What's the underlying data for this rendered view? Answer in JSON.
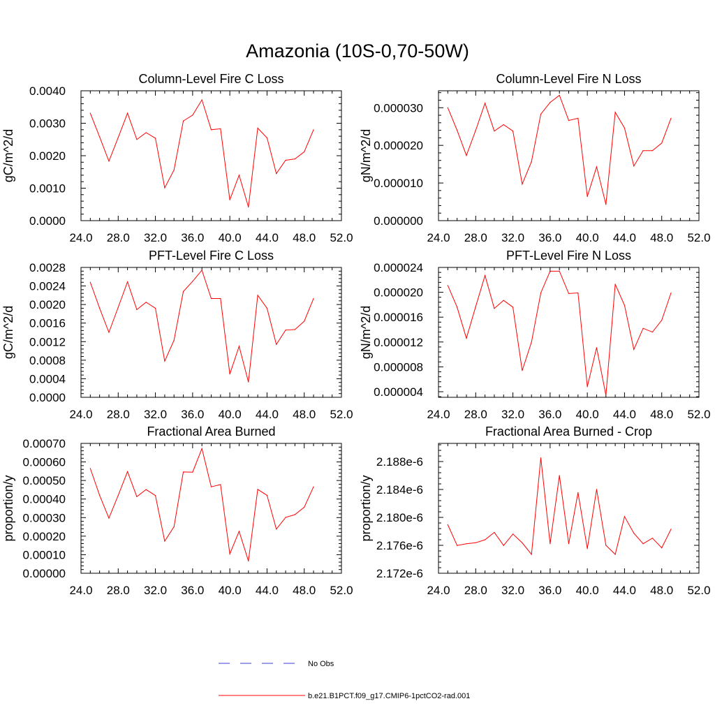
{
  "figure": {
    "title": "Amazonia (10S-0,70-50W)"
  },
  "legend": {
    "entries": [
      {
        "label": "No Obs",
        "color": "#3b3bd9",
        "style": "dashed"
      },
      {
        "label": "b.e21.B1PCT.f09_g17.CMIP6-1pctCO2-rad.001",
        "color": "#ff0000",
        "style": "solid"
      }
    ]
  },
  "chart_data": [
    {
      "type": "line",
      "title": "Column-Level Fire C Loss",
      "ylabel": "gC/m^2/d",
      "xlim": [
        24,
        52
      ],
      "ylim": [
        0,
        0.004
      ],
      "xticks": [
        "24.0",
        "28.0",
        "32.0",
        "36.0",
        "40.0",
        "44.0",
        "48.0",
        "52.0"
      ],
      "yticks": [
        "0.0000",
        "0.0010",
        "0.0020",
        "0.0030",
        "0.0040"
      ],
      "ytick_values": [
        0,
        0.001,
        0.002,
        0.003,
        0.004
      ],
      "x": [
        25,
        26,
        27,
        28,
        29,
        30,
        31,
        32,
        33,
        34,
        35,
        36,
        37,
        38,
        39,
        40,
        41,
        42,
        43,
        44,
        45,
        46,
        47,
        48,
        49
      ],
      "series": [
        {
          "color": "#ff0000",
          "values": [
            0.00331,
            0.00258,
            0.00183,
            0.00256,
            0.00331,
            0.0025,
            0.00271,
            0.00254,
            0.00101,
            0.00156,
            0.00307,
            0.00325,
            0.00372,
            0.0028,
            0.00283,
            0.00064,
            0.0014,
            0.00042,
            0.00285,
            0.00255,
            0.00145,
            0.00186,
            0.0019,
            0.00212,
            0.0028
          ]
        }
      ]
    },
    {
      "type": "line",
      "title": "Column-Level Fire N Loss",
      "ylabel": "gN/m^2/d",
      "xlim": [
        24,
        52
      ],
      "ylim": [
        0,
        3.45e-05
      ],
      "xticks": [
        "24.0",
        "28.0",
        "32.0",
        "36.0",
        "40.0",
        "44.0",
        "48.0",
        "52.0"
      ],
      "yticks": [
        "0.000000",
        "0.000010",
        "0.000020",
        "0.000030"
      ],
      "ytick_values": [
        0,
        1e-05,
        2e-05,
        3e-05
      ],
      "x": [
        25,
        26,
        27,
        28,
        29,
        30,
        31,
        32,
        33,
        34,
        35,
        36,
        37,
        38,
        39,
        40,
        41,
        42,
        43,
        44,
        45,
        46,
        47,
        48,
        49
      ],
      "series": [
        {
          "color": "#ff0000",
          "values": [
            3e-05,
            2.4e-05,
            1.73e-05,
            2.4e-05,
            3.12e-05,
            2.38e-05,
            2.55e-05,
            2.38e-05,
            9.7e-06,
            1.57e-05,
            2.83e-05,
            3.14e-05,
            3.33e-05,
            2.66e-05,
            2.72e-05,
            6.4e-06,
            1.43e-05,
            4.3e-06,
            2.88e-05,
            2.46e-05,
            1.45e-05,
            1.86e-05,
            1.86e-05,
            2.06e-05,
            2.72e-05
          ]
        }
      ]
    },
    {
      "type": "line",
      "title": "PFT-Level Fire C Loss",
      "ylabel": "gC/m^2/d",
      "xlim": [
        24,
        52
      ],
      "ylim": [
        0,
        0.0028
      ],
      "xticks": [
        "24.0",
        "28.0",
        "32.0",
        "36.0",
        "40.0",
        "44.0",
        "48.0",
        "52.0"
      ],
      "yticks": [
        "0.0000",
        "0.0004",
        "0.0008",
        "0.0012",
        "0.0016",
        "0.0020",
        "0.0024",
        "0.0028"
      ],
      "ytick_values": [
        0,
        0.0004,
        0.0008,
        0.0012,
        0.0016,
        0.002,
        0.0024,
        0.0028
      ],
      "x": [
        25,
        26,
        27,
        28,
        29,
        30,
        31,
        32,
        33,
        34,
        35,
        36,
        37,
        38,
        39,
        40,
        41,
        42,
        43,
        44,
        45,
        46,
        47,
        48,
        49
      ],
      "series": [
        {
          "color": "#ff0000",
          "values": [
            0.00248,
            0.00192,
            0.0014,
            0.00194,
            0.00249,
            0.00189,
            0.00205,
            0.00192,
            0.00078,
            0.00123,
            0.00228,
            0.0025,
            0.00274,
            0.00213,
            0.00213,
            0.0005,
            0.0011,
            0.00033,
            0.0022,
            0.00192,
            0.00114,
            0.00145,
            0.00146,
            0.00164,
            0.00213
          ]
        }
      ]
    },
    {
      "type": "line",
      "title": "PFT-Level Fire N Loss",
      "ylabel": "gN/m^2/d",
      "xlim": [
        24,
        52
      ],
      "ylim": [
        3.1e-06,
        2.4e-05
      ],
      "xticks": [
        "24.0",
        "28.0",
        "32.0",
        "36.0",
        "40.0",
        "44.0",
        "48.0",
        "52.0"
      ],
      "yticks": [
        "0.000004",
        "0.000008",
        "0.000012",
        "0.000016",
        "0.000020",
        "0.000024"
      ],
      "ytick_values": [
        4e-06,
        8e-06,
        1.2e-05,
        1.6e-05,
        2e-05,
        2.4e-05
      ],
      "x": [
        25,
        26,
        27,
        28,
        29,
        30,
        31,
        32,
        33,
        34,
        35,
        36,
        37,
        38,
        39,
        40,
        41,
        42,
        43,
        44,
        45,
        46,
        47,
        48,
        49
      ],
      "series": [
        {
          "color": "#ff0000",
          "values": [
            2.11e-05,
            1.76e-05,
            1.26e-05,
            1.77e-05,
            2.27e-05,
            1.74e-05,
            1.87e-05,
            1.76e-05,
            7.4e-06,
            1.2e-05,
            1.99e-05,
            2.34e-05,
            2.34e-05,
            1.98e-05,
            1.99e-05,
            4.8e-06,
            1.11e-05,
            3.4e-06,
            2.13e-05,
            1.79e-05,
            1.08e-05,
            1.42e-05,
            1.36e-05,
            1.55e-05,
            1.99e-05
          ]
        }
      ]
    },
    {
      "type": "line",
      "title": "Fractional Area Burned",
      "ylabel": "proportion/y",
      "xlim": [
        24,
        52
      ],
      "ylim": [
        0,
        0.0007
      ],
      "xticks": [
        "24.0",
        "28.0",
        "32.0",
        "36.0",
        "40.0",
        "44.0",
        "48.0",
        "52.0"
      ],
      "yticks": [
        "0.00000",
        "0.00010",
        "0.00020",
        "0.00030",
        "0.00040",
        "0.00050",
        "0.00060",
        "0.00070"
      ],
      "ytick_values": [
        0,
        0.0001,
        0.0002,
        0.0003,
        0.0004,
        0.0005,
        0.0006,
        0.0007
      ],
      "x": [
        25,
        26,
        27,
        28,
        29,
        30,
        31,
        32,
        33,
        34,
        35,
        36,
        37,
        38,
        39,
        40,
        41,
        42,
        43,
        44,
        45,
        46,
        47,
        48,
        49
      ],
      "series": [
        {
          "color": "#ff0000",
          "values": [
            0.000565,
            0.00042,
            0.000297,
            0.00042,
            0.000548,
            0.000413,
            0.000451,
            0.000419,
            0.000173,
            0.000251,
            0.000546,
            0.000545,
            0.000672,
            0.000466,
            0.000478,
            0.000104,
            0.000226,
            6.6e-05,
            0.000452,
            0.00042,
            0.000238,
            0.000301,
            0.000316,
            0.000356,
            0.000466
          ]
        }
      ]
    },
    {
      "type": "line",
      "title": "Fractional Area Burned - Crop",
      "ylabel": "proportion/y",
      "xlim": [
        24,
        52
      ],
      "ylim": [
        2.172e-06,
        2.1906e-06
      ],
      "xticks": [
        "24.0",
        "28.0",
        "32.0",
        "36.0",
        "40.0",
        "44.0",
        "48.0",
        "52.0"
      ],
      "yticks": [
        "2.172e-6",
        "2.176e-6",
        "2.180e-6",
        "2.184e-6",
        "2.188e-6"
      ],
      "ytick_values": [
        2.172e-06,
        2.176e-06,
        2.18e-06,
        2.184e-06,
        2.188e-06
      ],
      "x": [
        25,
        26,
        27,
        28,
        29,
        30,
        31,
        32,
        33,
        34,
        35,
        36,
        37,
        38,
        39,
        40,
        41,
        42,
        43,
        44,
        45,
        46,
        47,
        48,
        49
      ],
      "series": [
        {
          "color": "#ff0000",
          "values": [
            2.17895e-06,
            2.17598e-06,
            2.17623e-06,
            2.17637e-06,
            2.1768e-06,
            2.17785e-06,
            2.17598e-06,
            2.17762e-06,
            2.17636e-06,
            2.1747e-06,
            2.18853e-06,
            2.17623e-06,
            2.186e-06,
            2.17623e-06,
            2.18355e-06,
            2.17552e-06,
            2.18402e-06,
            2.176e-06,
            2.1747e-06,
            2.18012e-06,
            2.17774e-06,
            2.17623e-06,
            2.17703e-06,
            2.17564e-06,
            2.17831e-06
          ]
        }
      ]
    }
  ]
}
